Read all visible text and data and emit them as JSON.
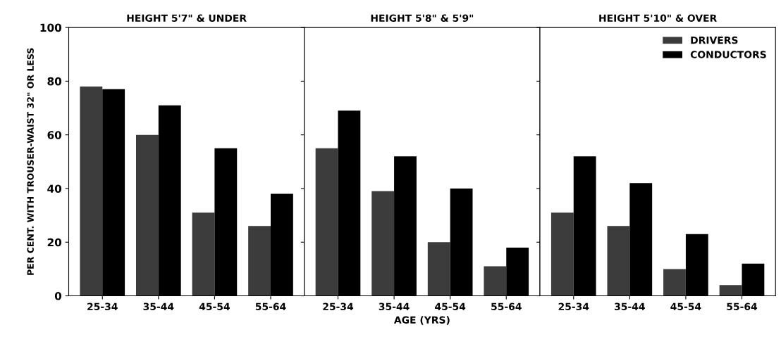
{
  "chart_data": [
    {
      "type": "bar",
      "title": "HEIGHT 5'7\" & UNDER",
      "ylabel": "PER CENT. WITH TROUSER-WAIST 32\" OR LESS",
      "categories": [
        "25-34",
        "35-44",
        "45-54",
        "55-64"
      ],
      "ylim": [
        0,
        100
      ],
      "yticks": [
        0,
        20,
        40,
        60,
        80,
        100
      ],
      "legend": false,
      "grid": false,
      "series": [
        {
          "color": "#3c3c3c",
          "values": [
            78,
            60,
            31,
            26
          ]
        },
        {
          "color": "#000000",
          "values": [
            77,
            71,
            55,
            38
          ]
        }
      ]
    },
    {
      "type": "bar",
      "title": "HEIGHT 5'8\" & 5'9\"",
      "xlabel": "AGE (YRS)",
      "categories": [
        "25-34",
        "35-44",
        "45-54",
        "55-64"
      ],
      "ylim": [
        0,
        100
      ],
      "yticks": [
        0,
        20,
        40,
        60,
        80,
        100
      ],
      "tick_labels": "x",
      "legend": false,
      "grid": false,
      "series": [
        {
          "color": "#3c3c3c",
          "values": [
            55,
            39,
            20,
            11
          ]
        },
        {
          "color": "#000000",
          "values": [
            69,
            52,
            40,
            18
          ]
        }
      ]
    },
    {
      "type": "bar",
      "title": "HEIGHT 5'10\" & OVER",
      "categories": [
        "25-34",
        "35-44",
        "45-54",
        "55-64"
      ],
      "ylim": [
        0,
        100
      ],
      "yticks": [
        0,
        20,
        40,
        60,
        80,
        100
      ],
      "tick_labels": "x",
      "legend": "top right",
      "grid": false,
      "series": [
        {
          "name": "DRIVERS",
          "color": "#3c3c3c",
          "values": [
            31,
            26,
            10,
            4
          ]
        },
        {
          "name": "CONDUCTORS",
          "color": "#000000",
          "values": [
            52,
            42,
            23,
            12
          ]
        }
      ]
    }
  ]
}
